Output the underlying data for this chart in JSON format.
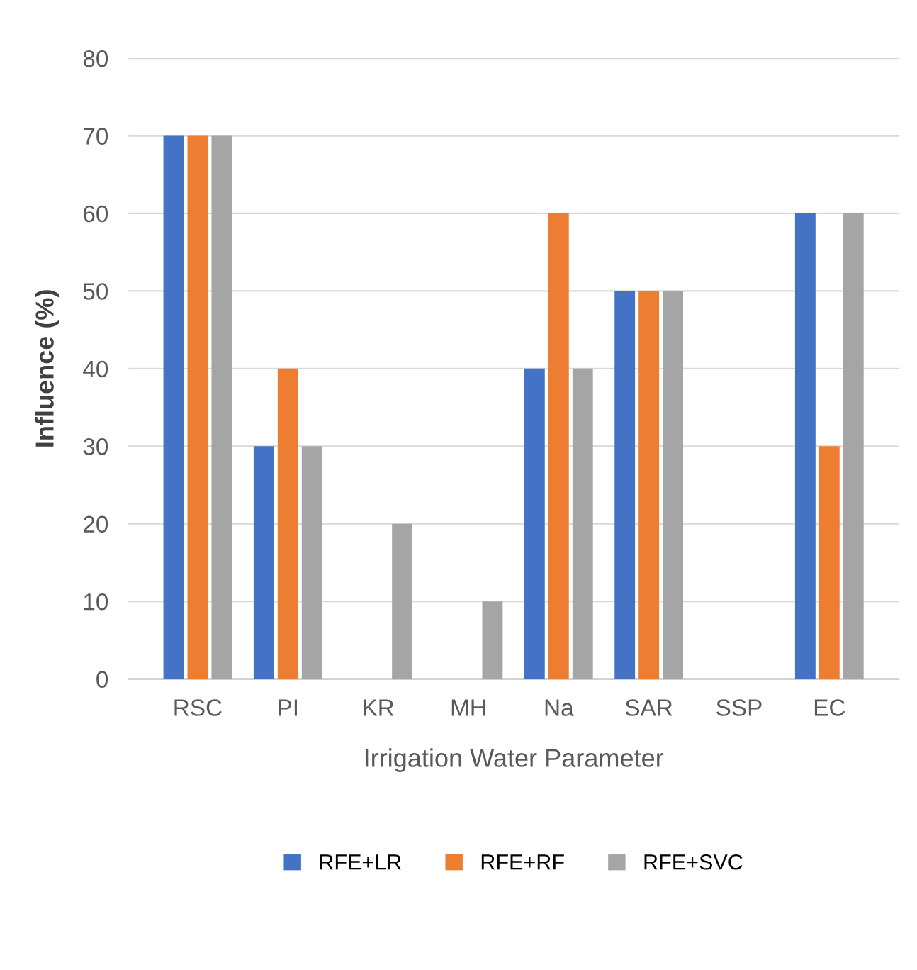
{
  "chart_data": {
    "type": "bar",
    "xlabel": "Irrigation Water Parameter",
    "ylabel": "Influence (%)",
    "categories": [
      "RSC",
      "PI",
      "KR",
      "MH",
      "Na",
      "SAR",
      "SSP",
      "EC"
    ],
    "series": [
      {
        "name": "RFE+LR",
        "color": "#4472c4",
        "values": [
          70,
          30,
          0,
          0,
          40,
          50,
          0,
          60
        ]
      },
      {
        "name": "RFE+RF",
        "color": "#ed7d31",
        "values": [
          70,
          40,
          0,
          0,
          60,
          50,
          0,
          30
        ]
      },
      {
        "name": "RFE+SVC",
        "color": "#a5a5a5",
        "values": [
          70,
          30,
          20,
          10,
          40,
          50,
          0,
          60
        ]
      }
    ],
    "ylim": [
      0,
      80
    ],
    "yticks": [
      0,
      10,
      20,
      30,
      40,
      50,
      60,
      70,
      80
    ],
    "grid": "y",
    "legend": "bottom"
  }
}
